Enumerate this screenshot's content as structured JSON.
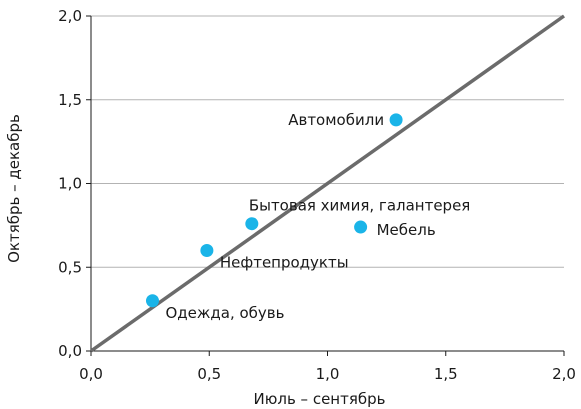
{
  "chart_data": {
    "type": "scatter",
    "title": "",
    "xlabel": "Июль – сентябрь",
    "ylabel": "Октябрь – декабрь",
    "xlim": [
      0,
      2
    ],
    "ylim": [
      0,
      2
    ],
    "xticks": [
      0,
      0.5,
      1,
      1.5,
      2
    ],
    "yticks": [
      0,
      0.5,
      1,
      1.5,
      2
    ],
    "xtick_labels": [
      "0,0",
      "0,5",
      "1,0",
      "1,5",
      "2,0"
    ],
    "ytick_labels": [
      "0,0",
      "0,5",
      "1,0",
      "1,5",
      "2,0"
    ],
    "grid": "horizontal",
    "reference_line": {
      "from": [
        0,
        0
      ],
      "to": [
        2,
        2
      ],
      "color": "#6b6b6b"
    },
    "point_color": "#1ab4e8",
    "points": [
      {
        "label": "Одежда, обувь",
        "x": 0.26,
        "y": 0.3,
        "label_pos": "below-right"
      },
      {
        "label": "Нефтепродукты",
        "x": 0.49,
        "y": 0.6,
        "label_pos": "below-right"
      },
      {
        "label": "Бытовая химия, галантерея",
        "x": 0.68,
        "y": 0.76,
        "label_pos": "above-right"
      },
      {
        "label": "Мебель",
        "x": 1.14,
        "y": 0.74,
        "label_pos": "right"
      },
      {
        "label": "Автомобили",
        "x": 1.29,
        "y": 1.38,
        "label_pos": "left"
      }
    ]
  }
}
